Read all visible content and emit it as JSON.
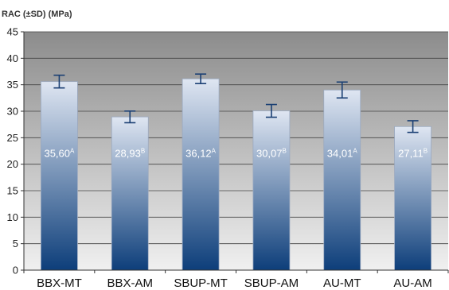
{
  "chart_data": {
    "type": "bar",
    "ylabel": "RAC (±SD) (MPa)",
    "xlabel": "",
    "title": "",
    "ylim": [
      0,
      45
    ],
    "yticks": [
      "0",
      "5",
      "10",
      "15",
      "20",
      "25",
      "30",
      "35",
      "40",
      "45"
    ],
    "ytick_values": [
      0,
      5,
      10,
      15,
      20,
      25,
      30,
      35,
      40,
      45
    ],
    "categories": [
      "BBX-MT",
      "BBX-AM",
      "SBUP-MT",
      "SBUP-AM",
      "AU-MT",
      "AU-AM"
    ],
    "values": [
      35.6,
      28.93,
      36.12,
      30.07,
      34.01,
      27.11
    ],
    "sd": [
      1.2,
      1.1,
      0.9,
      1.2,
      1.5,
      1.1
    ],
    "data_labels": [
      {
        "value": "35,60",
        "sup": "A"
      },
      {
        "value": "28,93",
        "sup": "B"
      },
      {
        "value": "36,12",
        "sup": "A"
      },
      {
        "value": "30,07",
        "sup": "B"
      },
      {
        "value": "34,01",
        "sup": "A"
      },
      {
        "value": "27,11",
        "sup": "B"
      }
    ],
    "grid": true,
    "colors": {
      "plot_background_top": "#8c8c8c",
      "plot_background_bottom": "#f0f0f0",
      "bar_top": "#dfe6f2",
      "bar_bottom": "#0d3e7a",
      "error_bar": "#1a3f73",
      "gridline": "#444444"
    }
  }
}
